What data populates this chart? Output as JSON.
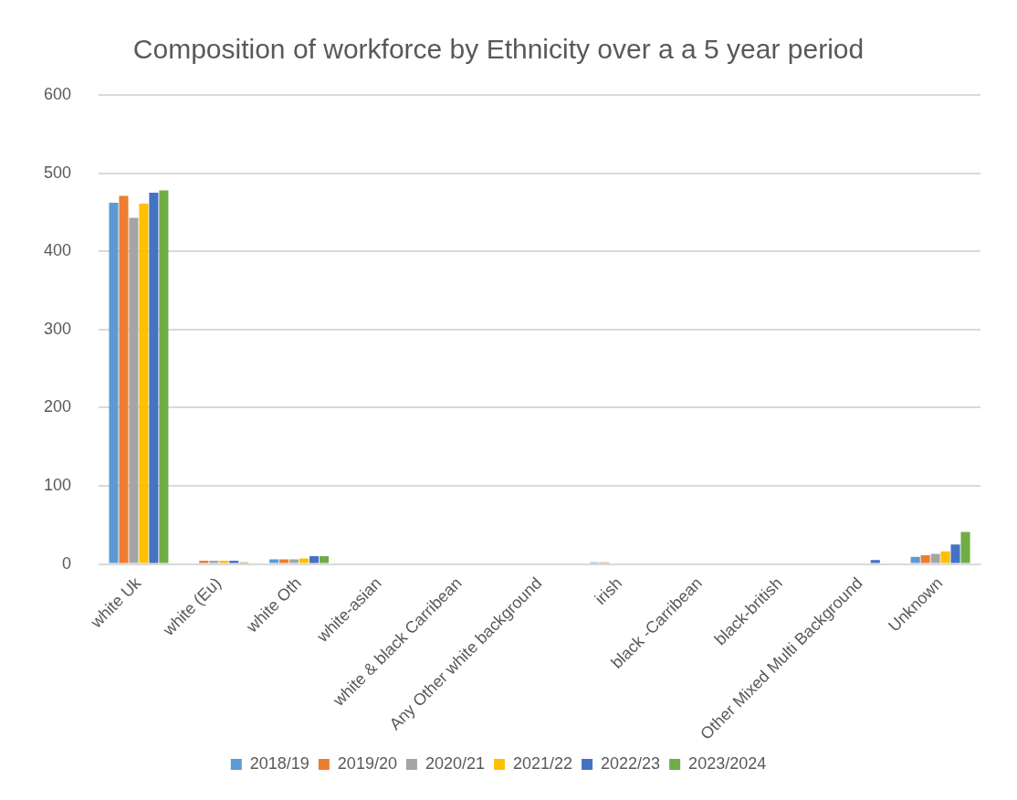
{
  "chart_data": {
    "type": "bar",
    "title": "Composition of workforce by Ethnicity over a a 5 year period",
    "categories": [
      "white Uk",
      "white (Eu)",
      "white Oth",
      "white-asian",
      "white & black Carribean",
      "Any Other white background",
      "irish",
      "black -Carribean",
      "black-british",
      "Other Mixed Multi Background",
      "Unknown"
    ],
    "series": [
      {
        "name": "2018/19",
        "color": "#5b9bd5",
        "values": [
          462,
          0,
          6,
          0,
          0,
          0,
          2,
          0,
          0,
          0,
          9
        ]
      },
      {
        "name": "2019/20",
        "color": "#ed7d31",
        "values": [
          471,
          4,
          6,
          0,
          0,
          0,
          2,
          0,
          0,
          0,
          11
        ]
      },
      {
        "name": "2020/21",
        "color": "#a5a5a5",
        "values": [
          443,
          4,
          6,
          0,
          0,
          0,
          0,
          0,
          0,
          0,
          13
        ]
      },
      {
        "name": "2021/22",
        "color": "#ffc000",
        "values": [
          461,
          4,
          7,
          0,
          0,
          0,
          0,
          0,
          0,
          0,
          16
        ]
      },
      {
        "name": "2022/23",
        "color": "#4472c4",
        "values": [
          475,
          4,
          10,
          0,
          0,
          0,
          0,
          0,
          0,
          5,
          25
        ]
      },
      {
        "name": "2023/2024",
        "color": "#70ad47",
        "values": [
          478,
          2,
          10,
          0,
          0,
          0,
          0,
          0,
          0,
          0,
          41
        ]
      }
    ],
    "ylim": [
      0,
      600
    ],
    "yticks": [
      0,
      100,
      200,
      300,
      400,
      500,
      600
    ],
    "grid": "y",
    "legend": "bottom"
  }
}
